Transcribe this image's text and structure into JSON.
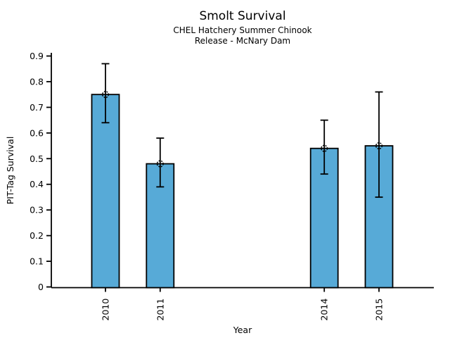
{
  "chart_data": {
    "type": "bar",
    "title": "Smolt Survival",
    "subtitle1": "CHEL Hatchery Summer Chinook",
    "subtitle2": "Release - McNary Dam",
    "xlabel": "Year",
    "ylabel": "PIT-Tag Survival",
    "categories": [
      "2010",
      "2011",
      "2014",
      "2015"
    ],
    "years": [
      2010,
      2011,
      2014,
      2015
    ],
    "values": [
      0.75,
      0.48,
      0.54,
      0.55
    ],
    "error_low": [
      0.64,
      0.39,
      0.44,
      0.35
    ],
    "error_high": [
      0.87,
      0.58,
      0.65,
      0.76
    ],
    "ylim": [
      0,
      0.9
    ],
    "yticks": [
      "0",
      "0.1",
      "0.2",
      "0.3",
      "0.4",
      "0.5",
      "0.6",
      "0.7",
      "0.8",
      "0.9"
    ],
    "x_range_years": [
      2010,
      2015
    ],
    "grid": false,
    "legend": "none",
    "bar_color": "#57AAD7",
    "edge_color": "#000000",
    "marker": "dashed-open-circle"
  }
}
